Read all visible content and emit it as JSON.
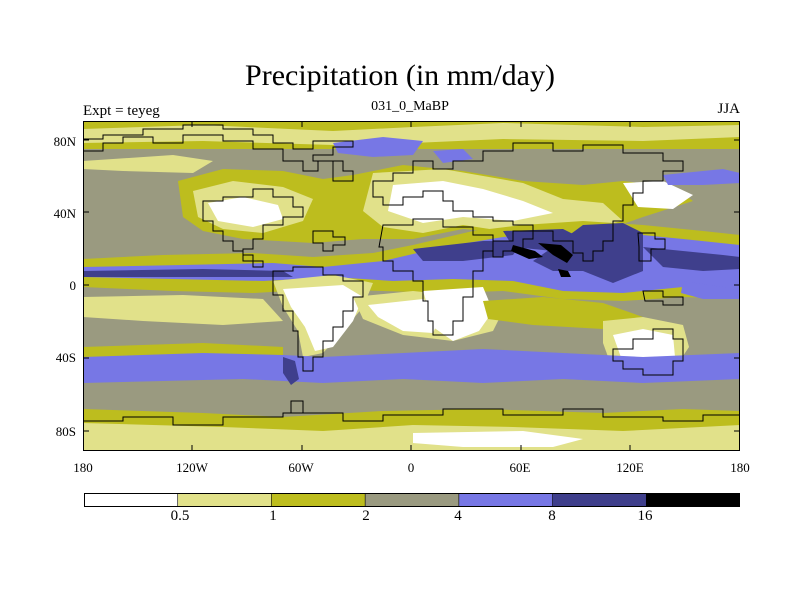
{
  "title": "Precipitation (in mm/day)",
  "subtitle_left": "Expt = teyeg",
  "subtitle_center": "031_0_MaBP",
  "subtitle_right": "JJA",
  "y_ticks": [
    "80N",
    "40N",
    "0",
    "40S",
    "80S"
  ],
  "x_ticks": [
    "180",
    "120W",
    "60W",
    "0",
    "60E",
    "120E",
    "180"
  ],
  "colorbar": {
    "labels": [
      "0.5",
      "1",
      "2",
      "4",
      "8",
      "16"
    ],
    "colors": [
      "#ffffff",
      "#e1e18a",
      "#bdbd1e",
      "#9a9a80",
      "#7777e5",
      "#3f3f8c",
      "#000000"
    ]
  },
  "colors": {
    "land_outline": "#000000",
    "frame": "#000000"
  }
}
